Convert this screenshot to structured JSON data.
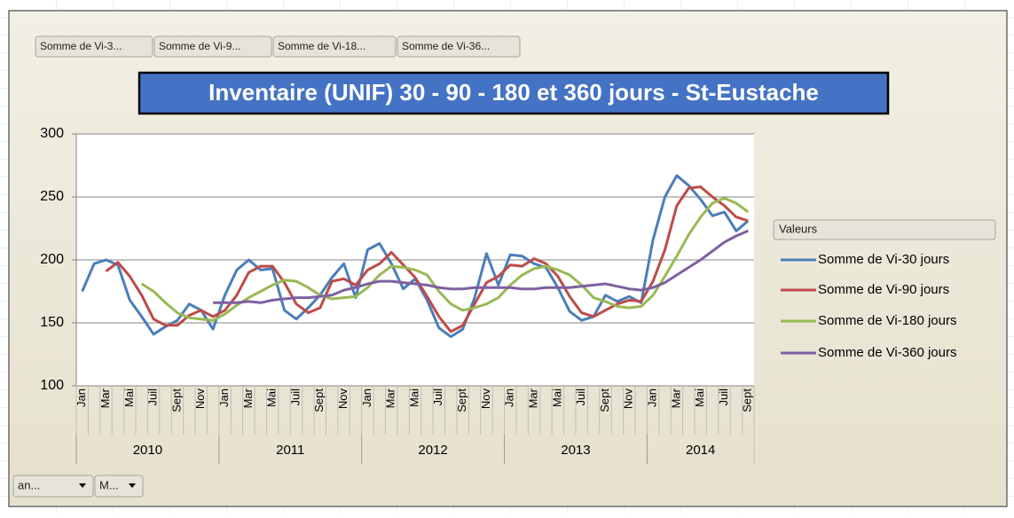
{
  "chart_data": {
    "type": "line",
    "title": "Inventaire (UNIF) 30 - 90 - 180 et 360 jours - St-Eustache",
    "field_buttons": [
      "Somme de Vi-3...",
      "Somme de Vi-9...",
      "Somme de Vi-18...",
      "Somme de Vi-36..."
    ],
    "legend_title": "Valeurs",
    "filter_buttons": [
      "an...",
      "M..."
    ],
    "categories": [
      "Jan",
      null,
      "Mar",
      null,
      "Mai",
      null,
      "Juil",
      null,
      "Sept",
      null,
      "Nov",
      null,
      "Jan",
      null,
      "Mar",
      null,
      "Mai",
      null,
      "Juil",
      null,
      "Sept",
      null,
      "Nov",
      null,
      "Jan",
      null,
      "Mar",
      null,
      "Mai",
      null,
      "Juil",
      null,
      "Sept",
      null,
      "Nov",
      null,
      "Jan",
      null,
      "Mar",
      null,
      "Mai",
      null,
      "Juil",
      null,
      "Sept",
      null,
      "Nov",
      null,
      "Jan",
      null,
      "Mar",
      null,
      "Mai",
      null,
      "Juil",
      null,
      "Sept"
    ],
    "groups": [
      "2010",
      "2011",
      "2012",
      "2013",
      "2014"
    ],
    "ylim": [
      100,
      300
    ],
    "yticks": [
      100,
      150,
      200,
      250,
      300
    ],
    "grid": true,
    "series": [
      {
        "name": "Somme de Vi-30 jours",
        "color": "#4a7ebb",
        "values": [
          175,
          197,
          200,
          196,
          168,
          155,
          141,
          147,
          152,
          165,
          160,
          145,
          172,
          192,
          200,
          192,
          193,
          160,
          153,
          162,
          172,
          186,
          197,
          170,
          208,
          213,
          197,
          177,
          185,
          168,
          146,
          139,
          145,
          170,
          205,
          180,
          204,
          203,
          197,
          194,
          178,
          159,
          152,
          155,
          172,
          167,
          171,
          166,
          216,
          250,
          267,
          259,
          248,
          235,
          238,
          223,
          231
        ]
      },
      {
        "name": "Somme de Vi-90 jours",
        "color": "#be4b48",
        "values": [
          null,
          null,
          191,
          198,
          187,
          172,
          153,
          148,
          148,
          156,
          160,
          155,
          160,
          172,
          190,
          195,
          195,
          182,
          165,
          158,
          162,
          183,
          185,
          180,
          192,
          197,
          206,
          196,
          186,
          171,
          155,
          143,
          148,
          165,
          182,
          187,
          196,
          195,
          201,
          197,
          187,
          171,
          158,
          155,
          160,
          165,
          168,
          167,
          183,
          208,
          243,
          257,
          258,
          250,
          243,
          234,
          231
        ]
      },
      {
        "name": "Somme de Vi-180 jours",
        "color": "#98b954",
        "values": [
          null,
          null,
          null,
          null,
          null,
          181,
          175,
          166,
          158,
          154,
          153,
          152,
          157,
          164,
          170,
          175,
          180,
          184,
          183,
          178,
          172,
          169,
          170,
          171,
          178,
          188,
          195,
          194,
          192,
          188,
          175,
          165,
          160,
          162,
          165,
          170,
          180,
          188,
          193,
          195,
          192,
          188,
          180,
          170,
          167,
          163,
          162,
          163,
          172,
          187,
          203,
          220,
          234,
          245,
          249,
          245,
          238
        ]
      },
      {
        "name": "Somme de Vi-360 jours",
        "color": "#7d60a0",
        "values": [
          null,
          null,
          null,
          null,
          null,
          null,
          null,
          null,
          null,
          null,
          null,
          166,
          166,
          166,
          167,
          166,
          168,
          169,
          170,
          170,
          171,
          172,
          176,
          178,
          181,
          183,
          183,
          182,
          181,
          180,
          178,
          177,
          177,
          178,
          178,
          178,
          178,
          177,
          177,
          178,
          178,
          178,
          179,
          180,
          181,
          179,
          177,
          176,
          178,
          182,
          188,
          194,
          200,
          207,
          214,
          219,
          223
        ]
      }
    ]
  }
}
